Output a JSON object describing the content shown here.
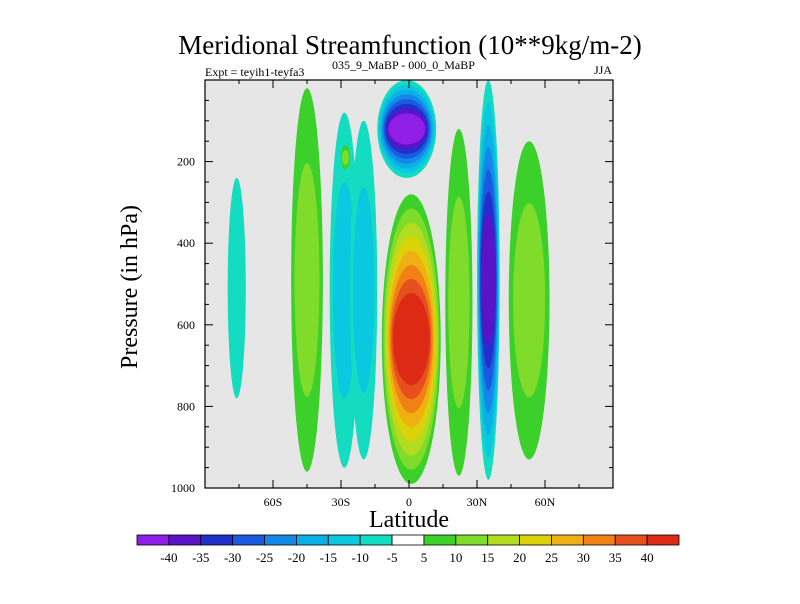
{
  "chart_data": {
    "type": "heatmap",
    "title": "Meridional Streamfunction (10**9kg/m-2)",
    "subtitle_left": "Expt = teyih1-teyfa3",
    "subtitle_sup": "035_9_MaBP - 000_0_MaBP",
    "season": "JJA",
    "xlabel": "Latitude",
    "ylabel": "Pressure (in hPa)",
    "xlim": [
      -90,
      90
    ],
    "ylim": [
      1000,
      0
    ],
    "x_ticks": [
      {
        "value": -60,
        "label": "60S"
      },
      {
        "value": -30,
        "label": "30S"
      },
      {
        "value": 0,
        "label": "0"
      },
      {
        "value": 30,
        "label": "30N"
      },
      {
        "value": 60,
        "label": "60N"
      }
    ],
    "y_ticks": [
      {
        "value": 200,
        "label": "200"
      },
      {
        "value": 400,
        "label": "400"
      },
      {
        "value": 600,
        "label": "600"
      },
      {
        "value": 800,
        "label": "800"
      },
      {
        "value": 1000,
        "label": "1000"
      }
    ],
    "missing_color": "#e6e6e6",
    "colorbar": {
      "levels": [
        -40,
        -35,
        -30,
        -25,
        -20,
        -15,
        -10,
        -5,
        5,
        10,
        15,
        20,
        25,
        30,
        35,
        40
      ],
      "labels": [
        "-40",
        "-35",
        "-30",
        "-25",
        "-20",
        "-15",
        "-10",
        "-5",
        "5",
        "10",
        "15",
        "20",
        "25",
        "30",
        "35",
        "40"
      ],
      "colors": [
        "#8f1ee6",
        "#5a14c8",
        "#2030c8",
        "#1a5ae0",
        "#1488e6",
        "#0aafe6",
        "#0ac8e0",
        "#14dcc0",
        "#ffffff",
        "#3cd02a",
        "#80dc2a",
        "#b4dc1e",
        "#dcd20a",
        "#f0b014",
        "#f08214",
        "#e6501e",
        "#dc2a14"
      ]
    },
    "features": [
      {
        "name": "band-60S",
        "lat": [
          -52,
          -38
        ],
        "p": [
          20,
          960
        ],
        "peak": 12
      },
      {
        "name": "band-30S-outer",
        "lat": [
          -35,
          -22
        ],
        "p": [
          80,
          950
        ],
        "peak": -10
      },
      {
        "name": "band-30S-inner",
        "lat": [
          -26,
          -14
        ],
        "p": [
          100,
          930
        ],
        "peak": -12
      },
      {
        "name": "positive-cell",
        "lat": [
          -12,
          14
        ],
        "p": [
          280,
          990
        ],
        "peak": 42
      },
      {
        "name": "negative-cell",
        "lat": [
          -14,
          12
        ],
        "p": [
          0,
          240
        ],
        "peak": -40
      },
      {
        "name": "band-20N",
        "lat": [
          16,
          28
        ],
        "p": [
          120,
          970
        ],
        "peak": 14
      },
      {
        "name": "band-30N",
        "lat": [
          30,
          40
        ],
        "p": [
          0,
          980
        ],
        "peak": -35
      },
      {
        "name": "band-50N",
        "lat": [
          44,
          62
        ],
        "p": [
          150,
          930
        ],
        "peak": 10
      },
      {
        "name": "streak-75S",
        "lat": [
          -80,
          -72
        ],
        "p": [
          240,
          780
        ],
        "peak": -8
      },
      {
        "name": "patch-45S",
        "lat": [
          -30,
          -26
        ],
        "p": [
          160,
          220
        ],
        "peak": 10
      }
    ]
  }
}
